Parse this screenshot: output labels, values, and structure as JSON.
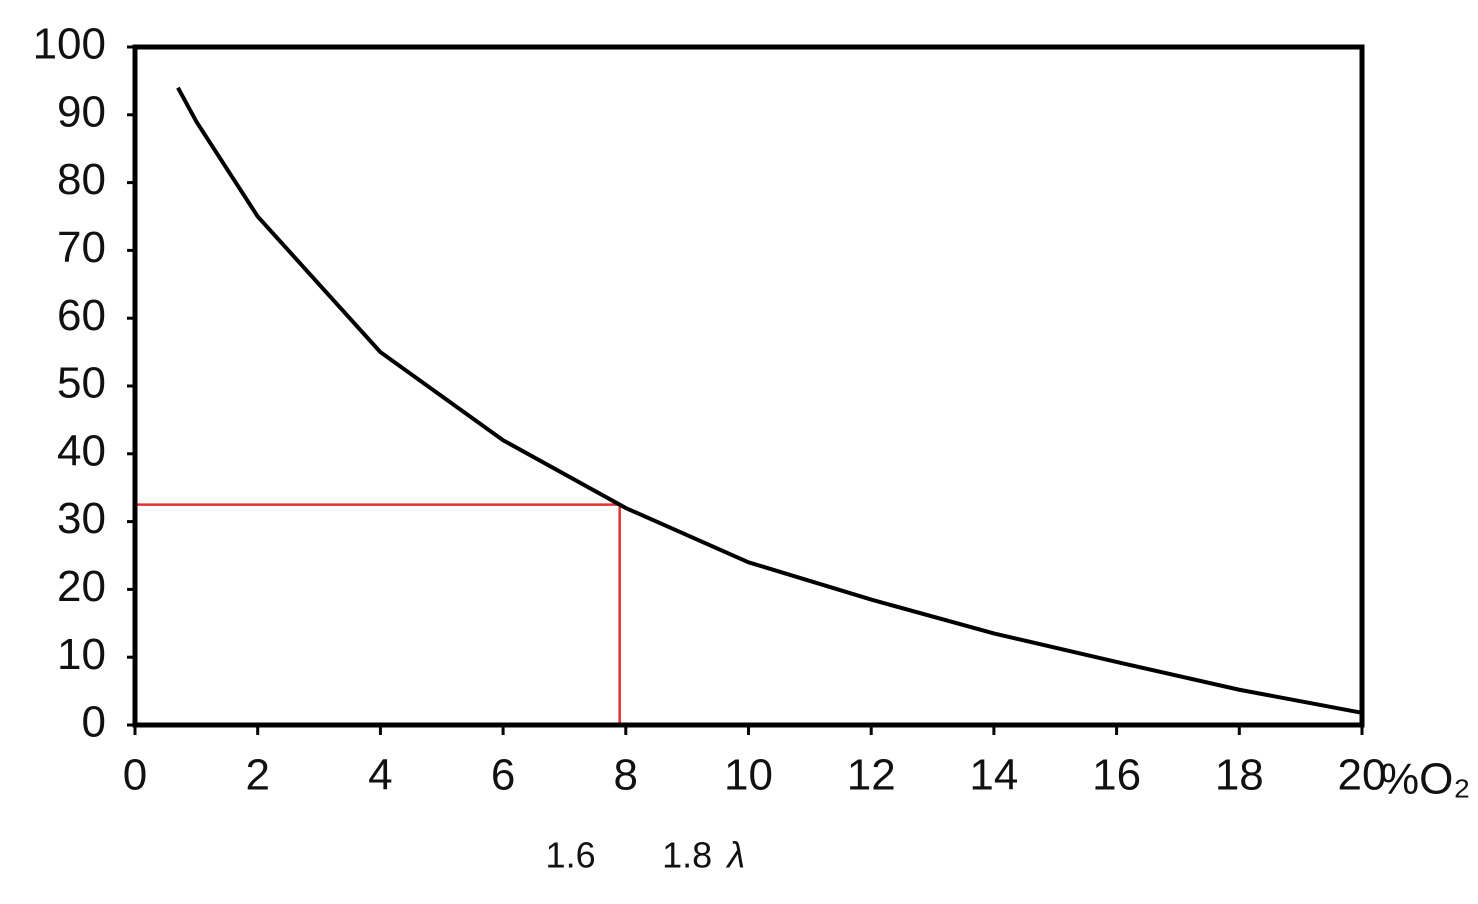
{
  "chart_data": {
    "type": "line",
    "x_label": "%O₂",
    "x": [
      0.7,
      1,
      2,
      4,
      6,
      8,
      10,
      12,
      14,
      16,
      18,
      20
    ],
    "series": [
      {
        "color": "#000000",
        "values": [
          94,
          89,
          75,
          55,
          42,
          32,
          24,
          18.5,
          13.5,
          9.3,
          5.2,
          1.8
        ]
      }
    ],
    "xlim": [
      0,
      20
    ],
    "ylim": [
      0,
      100
    ],
    "xticks": [
      0,
      2,
      4,
      6,
      8,
      10,
      12,
      14,
      16,
      18,
      20
    ],
    "yticks": [
      0,
      10,
      20,
      30,
      40,
      50,
      60,
      70,
      80,
      90,
      100
    ],
    "reference": {
      "x": 7.9,
      "y": 32.5,
      "color": "#e03030"
    },
    "annotations": [
      {
        "text": "1.6",
        "x": 7.1
      },
      {
        "text": "1.8",
        "x": 9.0
      },
      {
        "text": "λ",
        "x": 9.8
      }
    ]
  }
}
